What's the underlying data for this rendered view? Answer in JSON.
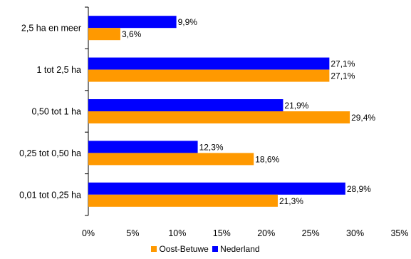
{
  "chart_data": {
    "type": "bar",
    "orientation": "horizontal",
    "categories": [
      "2,5 ha en meer",
      "1 tot 2,5 ha",
      "0,50 tot 1 ha",
      "0,25 tot 0,50 ha",
      "0,01 tot 0,25 ha"
    ],
    "series": [
      {
        "name": "Nederland",
        "color": "#0000ff",
        "values": [
          9.9,
          27.1,
          21.9,
          12.3,
          28.9
        ],
        "labels": [
          "9,9%",
          "27,1%",
          "21,9%",
          "12,3%",
          "28,9%"
        ]
      },
      {
        "name": "Oost-Betuwe",
        "color": "#ff9900",
        "values": [
          3.6,
          27.1,
          29.4,
          18.6,
          21.3
        ],
        "labels": [
          "3,6%",
          "27,1%",
          "29,4%",
          "18,6%",
          "21,3%"
        ]
      }
    ],
    "xlim": [
      0,
      35
    ],
    "xticks": [
      "0%",
      "5%",
      "10%",
      "15%",
      "20%",
      "25%",
      "30%",
      "35%"
    ],
    "title": "",
    "xlabel": "",
    "ylabel": "",
    "grid": false,
    "legend_position": "bottom",
    "legend_order": [
      "Oost-Betuwe",
      "Nederland"
    ]
  }
}
